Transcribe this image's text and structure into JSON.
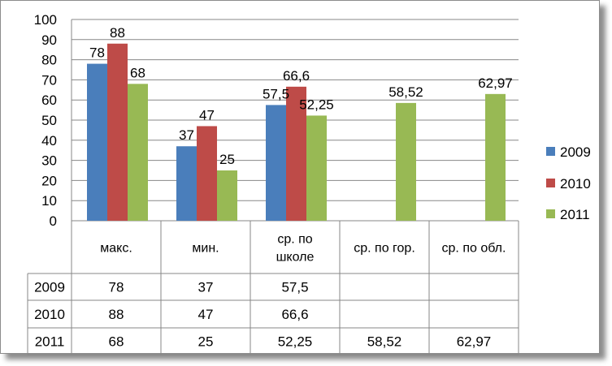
{
  "chart_data": {
    "type": "bar",
    "categories": [
      [
        "макс."
      ],
      [
        "мин."
      ],
      [
        "ср. по",
        "школе"
      ],
      [
        "ср. по гор."
      ],
      [
        "ср. по обл."
      ]
    ],
    "series": [
      {
        "name": "2009",
        "color": "#4a7ebb",
        "values": [
          78,
          37,
          57.5,
          null,
          null
        ],
        "labels": [
          "78",
          "37",
          "57,5",
          "",
          ""
        ]
      },
      {
        "name": "2010",
        "color": "#be4b48",
        "values": [
          88,
          47,
          66.6,
          null,
          null
        ],
        "labels": [
          "88",
          "47",
          "66,6",
          "",
          ""
        ]
      },
      {
        "name": "2011",
        "color": "#98b954",
        "values": [
          68,
          25,
          52.25,
          58.52,
          62.97
        ],
        "labels": [
          "68",
          "25",
          "52,25",
          "58,52",
          "62,97"
        ]
      }
    ],
    "ylim": [
      0,
      100
    ],
    "yticks": [
      0,
      10,
      20,
      30,
      40,
      50,
      60,
      70,
      80,
      90,
      100
    ],
    "grid": true,
    "legend": "right",
    "data_table": true
  }
}
